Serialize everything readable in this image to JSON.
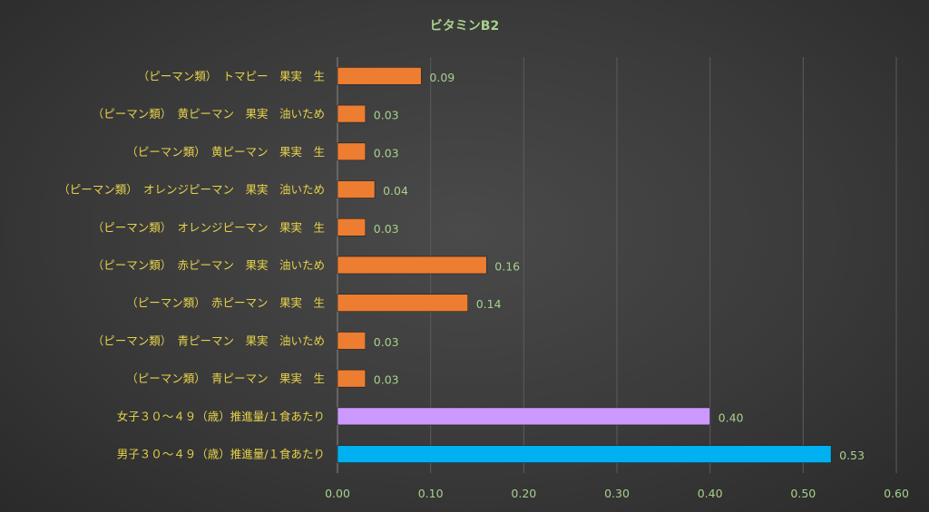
{
  "chart_data": {
    "type": "bar",
    "orientation": "horizontal",
    "title": "ビタミンB2",
    "categories": [
      "（ピーマン類）　トマピー　果実　生",
      "（ピーマン類）　黄ピーマン　果実　油いため",
      "（ピーマン類）　黄ピーマン　果実　生",
      "（ピーマン類）　オレンジピーマン　果実　油いため",
      "（ピーマン類）　オレンジピーマン　果実　生",
      "（ピーマン類）　赤ピーマン　果実　油いため",
      "（ピーマン類）　赤ピーマン　果実　生",
      "（ピーマン類）　青ピーマン　果実　油いため",
      "（ピーマン類）　青ピーマン　果実　生",
      "女子３０～４９（歳）推進量/１食あたり",
      "男子３０～４９（歳）推進量/１食あたり"
    ],
    "values": [
      0.09,
      0.03,
      0.03,
      0.04,
      0.03,
      0.16,
      0.14,
      0.03,
      0.03,
      0.4,
      0.53
    ],
    "value_labels": [
      "0.09",
      "0.03",
      "0.03",
      "0.04",
      "0.03",
      "0.16",
      "0.14",
      "0.03",
      "0.03",
      "0.40",
      "0.53"
    ],
    "bar_colors": [
      "#ed7d31",
      "#ed7d31",
      "#ed7d31",
      "#ed7d31",
      "#ed7d31",
      "#ed7d31",
      "#ed7d31",
      "#ed7d31",
      "#ed7d31",
      "#cc99ff",
      "#00b0f0"
    ],
    "xlim": [
      0,
      0.6
    ],
    "xticks": [
      "0.00",
      "0.10",
      "0.20",
      "0.30",
      "0.40",
      "0.50",
      "0.60"
    ],
    "grid": true,
    "legend": false
  }
}
